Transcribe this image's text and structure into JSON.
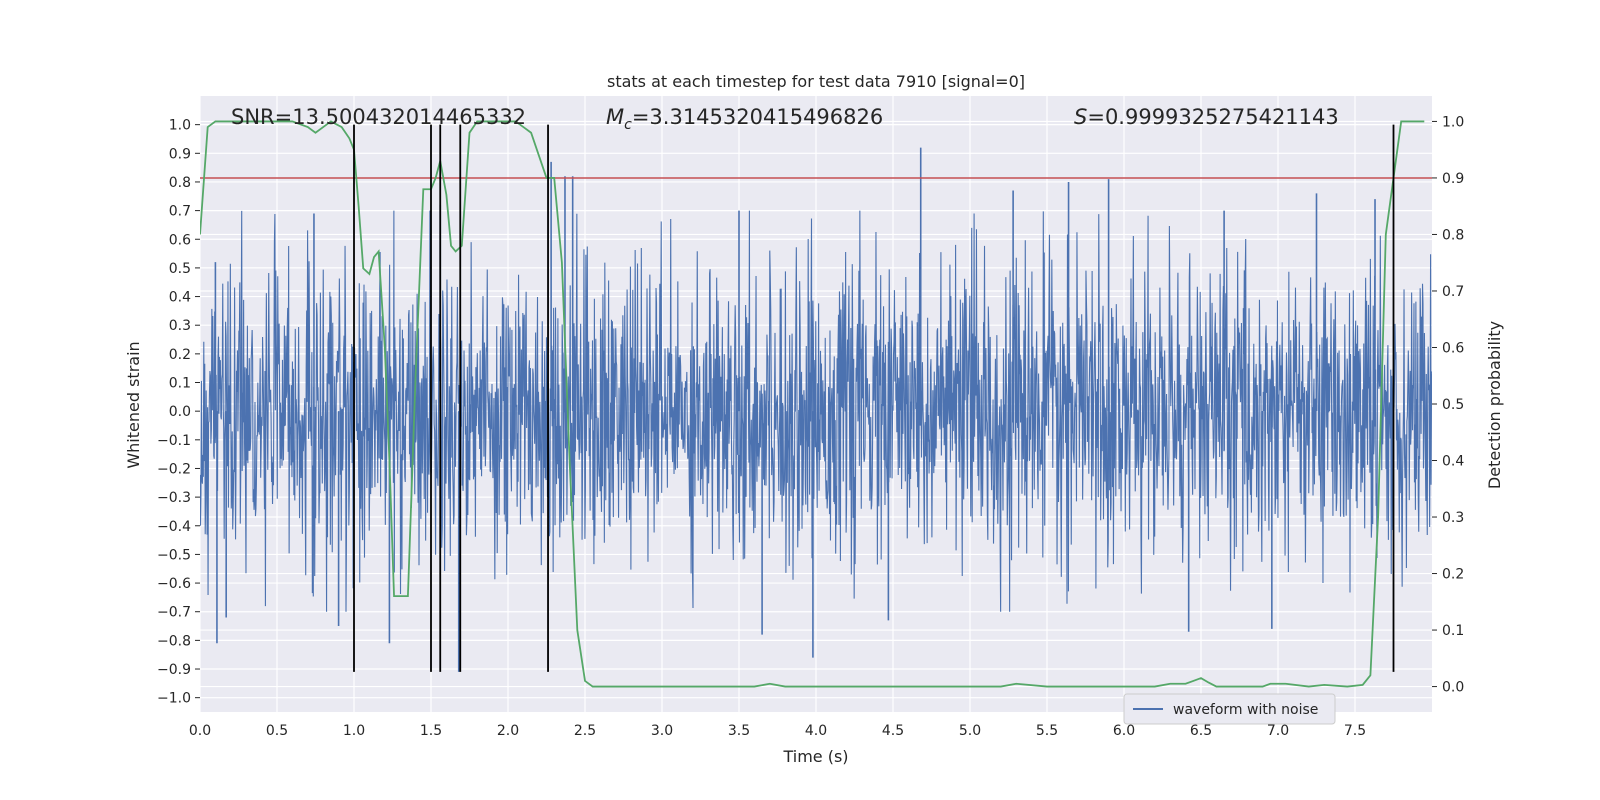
{
  "chart_data": {
    "type": "line",
    "title": "stats at each timestep for test data 7910 [signal=0]",
    "xlabel": "Time (s)",
    "ylabel_left": "Whitened strain",
    "ylabel_right": "Detection probability",
    "xlim": [
      0.0,
      8.0
    ],
    "ylim_left": [
      -1.05,
      1.1
    ],
    "ylim_right": [
      -0.045,
      1.045
    ],
    "x_ticks": [
      0.0,
      0.5,
      1.0,
      1.5,
      2.0,
      2.5,
      3.0,
      3.5,
      4.0,
      4.5,
      5.0,
      5.5,
      6.0,
      6.5,
      7.0,
      7.5
    ],
    "x_tick_labels": [
      "0.0",
      "0.5",
      "1.0",
      "1.5",
      "2.0",
      "2.5",
      "3.0",
      "3.5",
      "4.0",
      "4.5",
      "5.0",
      "5.5",
      "6.0",
      "6.5",
      "7.0",
      "7.5"
    ],
    "y_left_ticks": [
      -1.0,
      -0.9,
      -0.8,
      -0.7,
      -0.6,
      -0.5,
      -0.4,
      -0.3,
      -0.2,
      -0.1,
      0.0,
      0.1,
      0.2,
      0.3,
      0.4,
      0.5,
      0.6,
      0.7,
      0.8,
      0.9,
      1.0
    ],
    "y_left_tick_labels": [
      "−1.0",
      "−0.9",
      "−0.8",
      "−0.7",
      "−0.6",
      "−0.5",
      "−0.4",
      "−0.3",
      "−0.2",
      "−0.1",
      "0.0",
      "0.1",
      "0.2",
      "0.3",
      "0.4",
      "0.5",
      "0.6",
      "0.7",
      "0.8",
      "0.9",
      "1.0"
    ],
    "y_right_ticks": [
      0.0,
      0.1,
      0.2,
      0.3,
      0.4,
      0.5,
      0.6,
      0.7,
      0.8,
      0.9,
      1.0
    ],
    "y_right_tick_labels": [
      "0.0",
      "0.1",
      "0.2",
      "0.3",
      "0.4",
      "0.5",
      "0.6",
      "0.7",
      "0.8",
      "0.9",
      "1.0"
    ],
    "grid": true,
    "legend": {
      "placement": "lower-right",
      "entries": [
        "waveform with noise"
      ]
    },
    "annotations": {
      "snr": "SNR=13.500432014465332",
      "mc_symbol": "M",
      "mc_subscript": "c",
      "mc_value": "=3.3145320415496826",
      "s_symbol": "S",
      "s_value": "=0.9999325275421143"
    },
    "waveform": {
      "name": "waveform with noise",
      "color": "#4c72b0",
      "t_start": 0.0,
      "t_end": 8.0,
      "typical_abs_amplitude": 0.42,
      "spikes": [
        {
          "t": 0.1,
          "y": 0.52
        },
        {
          "t": 0.11,
          "y": -0.81
        },
        {
          "t": 0.17,
          "y": -0.72
        },
        {
          "t": 0.74,
          "y": 0.69
        },
        {
          "t": 0.9,
          "y": -0.75
        },
        {
          "t": 1.23,
          "y": -0.81
        },
        {
          "t": 1.56,
          "y": 0.72
        },
        {
          "t": 1.68,
          "y": -0.91
        },
        {
          "t": 2.28,
          "y": 0.87
        },
        {
          "t": 2.37,
          "y": 0.82
        },
        {
          "t": 2.42,
          "y": 0.82
        },
        {
          "t": 3.5,
          "y": 0.7
        },
        {
          "t": 3.65,
          "y": -0.78
        },
        {
          "t": 3.98,
          "y": -0.86
        },
        {
          "t": 4.47,
          "y": -0.73
        },
        {
          "t": 4.68,
          "y": 0.92
        },
        {
          "t": 5.28,
          "y": 0.77
        },
        {
          "t": 5.64,
          "y": 0.8
        },
        {
          "t": 5.9,
          "y": 0.81
        },
        {
          "t": 6.42,
          "y": -0.77
        },
        {
          "t": 6.65,
          "y": 0.7
        },
        {
          "t": 6.96,
          "y": -0.76
        },
        {
          "t": 7.25,
          "y": 0.76
        },
        {
          "t": 7.63,
          "y": 0.74
        }
      ]
    },
    "threshold": {
      "value": 0.9,
      "axis": "right",
      "color": "#c44e52"
    },
    "detection_probability": {
      "color": "#55a868",
      "axis": "right",
      "x": [
        0.0,
        0.05,
        0.1,
        0.2,
        0.4,
        0.6,
        0.7,
        0.75,
        0.8,
        0.85,
        0.92,
        0.97,
        1.0,
        1.03,
        1.06,
        1.1,
        1.13,
        1.16,
        1.2,
        1.23,
        1.26,
        1.3,
        1.35,
        1.4,
        1.45,
        1.5,
        1.53,
        1.56,
        1.6,
        1.63,
        1.66,
        1.7,
        1.75,
        1.8,
        1.9,
        2.0,
        2.05,
        2.1,
        2.15,
        2.2,
        2.25,
        2.3,
        2.35,
        2.4,
        2.45,
        2.5,
        2.55,
        2.6,
        2.8,
        3.0,
        3.2,
        3.5,
        3.6,
        3.7,
        3.8,
        4.0,
        4.2,
        4.5,
        4.7,
        5.0,
        5.2,
        5.3,
        5.5,
        5.7,
        5.9,
        6.2,
        6.3,
        6.4,
        6.45,
        6.5,
        6.55,
        6.6,
        6.8,
        6.9,
        6.95,
        7.05,
        7.2,
        7.3,
        7.45,
        7.55,
        7.6,
        7.65,
        7.7,
        7.75,
        7.8,
        7.85,
        7.95
      ],
      "y": [
        0.8,
        0.99,
        1.0,
        1.0,
        1.0,
        1.0,
        0.99,
        0.98,
        0.99,
        1.0,
        0.99,
        0.97,
        0.95,
        0.85,
        0.74,
        0.73,
        0.76,
        0.77,
        0.6,
        0.4,
        0.16,
        0.16,
        0.16,
        0.55,
        0.88,
        0.88,
        0.9,
        0.93,
        0.87,
        0.78,
        0.77,
        0.78,
        0.98,
        1.0,
        1.0,
        1.0,
        1.0,
        0.99,
        0.98,
        0.94,
        0.9,
        0.9,
        0.75,
        0.4,
        0.1,
        0.01,
        0.0,
        0.0,
        0.0,
        0.0,
        0.0,
        0.0,
        0.0,
        0.005,
        0.0,
        0.0,
        0.0,
        0.0,
        0.0,
        0.0,
        0.0,
        0.005,
        0.0,
        0.0,
        0.0,
        0.0,
        0.005,
        0.005,
        0.01,
        0.015,
        0.007,
        0.0,
        0.0,
        0.0,
        0.005,
        0.005,
        0.0,
        0.003,
        0.0,
        0.003,
        0.02,
        0.3,
        0.8,
        0.9,
        1.0,
        1.0,
        1.0
      ]
    },
    "event_markers": {
      "color": "#000000",
      "y_range": [
        -0.91,
        1.0
      ],
      "x": [
        1.0,
        1.5,
        1.56,
        1.69,
        2.26,
        7.75
      ]
    }
  }
}
